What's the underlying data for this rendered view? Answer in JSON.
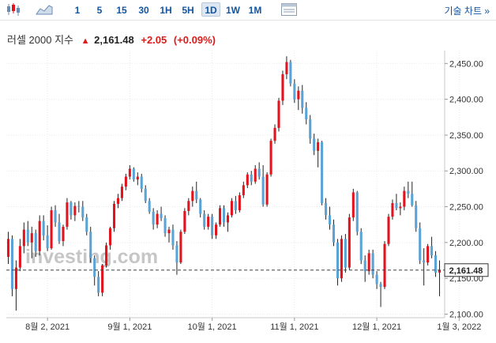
{
  "toolbar": {
    "timeframes": [
      "1",
      "5",
      "15",
      "30",
      "1H",
      "5H",
      "1D",
      "1W",
      "1M"
    ],
    "active_timeframe": "1D",
    "technical_chart_label": "기술 차트 »"
  },
  "quote": {
    "name": "러셀 2000 지수",
    "price": "2,161.48",
    "change": "+2.05",
    "change_pct": "(+0.09%)"
  },
  "watermark": "investing.com",
  "colors": {
    "up": "#e2131d",
    "down": "#5aa3d6",
    "accent": "#1256a0"
  },
  "chart_data": {
    "type": "candlestick",
    "y_ticks": [
      "2,450.00",
      "2,400.00",
      "2,350.00",
      "2,300.00",
      "2,250.00",
      "2,200.00",
      "2,150.00",
      "2,100.00"
    ],
    "x_ticks": [
      "8월 2, 2021",
      "9월 1, 2021",
      "10월 1, 2021",
      "11월 1, 2021",
      "12월 1, 2021",
      "1월 3, 2022"
    ],
    "ylim": [
      2095,
      2468
    ],
    "last_price_label": "2,161.48",
    "last_price": 2161.48,
    "candles": [
      [
        2180,
        2215,
        2170,
        2205
      ],
      [
        2205,
        2210,
        2125,
        2135
      ],
      [
        2135,
        2175,
        2105,
        2165
      ],
      [
        2165,
        2205,
        2160,
        2195
      ],
      [
        2195,
        2228,
        2185,
        2218
      ],
      [
        2218,
        2230,
        2195,
        2200
      ],
      [
        2200,
        2222,
        2178,
        2213
      ],
      [
        2213,
        2218,
        2180,
        2188
      ],
      [
        2188,
        2238,
        2182,
        2230
      ],
      [
        2230,
        2238,
        2203,
        2210
      ],
      [
        2210,
        2224,
        2188,
        2192
      ],
      [
        2192,
        2250,
        2190,
        2245
      ],
      [
        2245,
        2252,
        2222,
        2228
      ],
      [
        2228,
        2240,
        2198,
        2202
      ],
      [
        2202,
        2225,
        2195,
        2222
      ],
      [
        2222,
        2262,
        2218,
        2256
      ],
      [
        2256,
        2258,
        2232,
        2238
      ],
      [
        2238,
        2256,
        2230,
        2251
      ],
      [
        2251,
        2258,
        2242,
        2250
      ],
      [
        2250,
        2258,
        2230,
        2235
      ],
      [
        2235,
        2240,
        2210,
        2215
      ],
      [
        2215,
        2222,
        2172,
        2178
      ],
      [
        2178,
        2182,
        2140,
        2152
      ],
      [
        2152,
        2160,
        2125,
        2130
      ],
      [
        2130,
        2170,
        2125,
        2168
      ],
      [
        2168,
        2200,
        2165,
        2196
      ],
      [
        2196,
        2222,
        2190,
        2220
      ],
      [
        2220,
        2258,
        2215,
        2254
      ],
      [
        2254,
        2268,
        2248,
        2262
      ],
      [
        2262,
        2282,
        2258,
        2278
      ],
      [
        2278,
        2296,
        2273,
        2292
      ],
      [
        2292,
        2308,
        2288,
        2303
      ],
      [
        2303,
        2305,
        2285,
        2288
      ],
      [
        2288,
        2298,
        2280,
        2292
      ],
      [
        2292,
        2296,
        2270,
        2275
      ],
      [
        2275,
        2280,
        2255,
        2258
      ],
      [
        2258,
        2262,
        2240,
        2243
      ],
      [
        2243,
        2248,
        2218,
        2225
      ],
      [
        2225,
        2245,
        2220,
        2240
      ],
      [
        2240,
        2250,
        2230,
        2234
      ],
      [
        2234,
        2238,
        2208,
        2213
      ],
      [
        2213,
        2222,
        2200,
        2218
      ],
      [
        2218,
        2225,
        2190,
        2196
      ],
      [
        2196,
        2202,
        2155,
        2172
      ],
      [
        2172,
        2218,
        2170,
        2215
      ],
      [
        2215,
        2248,
        2212,
        2244
      ],
      [
        2244,
        2262,
        2238,
        2258
      ],
      [
        2258,
        2278,
        2250,
        2272
      ],
      [
        2272,
        2285,
        2255,
        2260
      ],
      [
        2260,
        2262,
        2235,
        2240
      ],
      [
        2240,
        2245,
        2218,
        2222
      ],
      [
        2222,
        2240,
        2218,
        2236
      ],
      [
        2236,
        2240,
        2205,
        2210
      ],
      [
        2210,
        2228,
        2205,
        2225
      ],
      [
        2225,
        2252,
        2222,
        2248
      ],
      [
        2248,
        2252,
        2222,
        2228
      ],
      [
        2228,
        2242,
        2215,
        2238
      ],
      [
        2238,
        2262,
        2235,
        2258
      ],
      [
        2258,
        2265,
        2240,
        2245
      ],
      [
        2245,
        2270,
        2242,
        2266
      ],
      [
        2266,
        2285,
        2262,
        2280
      ],
      [
        2280,
        2298,
        2276,
        2295
      ],
      [
        2295,
        2300,
        2280,
        2285
      ],
      [
        2285,
        2308,
        2282,
        2303
      ],
      [
        2303,
        2312,
        2288,
        2292
      ],
      [
        2292,
        2308,
        2250,
        2253
      ],
      [
        2253,
        2298,
        2250,
        2295
      ],
      [
        2295,
        2345,
        2292,
        2342
      ],
      [
        2342,
        2365,
        2338,
        2360
      ],
      [
        2360,
        2402,
        2355,
        2398
      ],
      [
        2398,
        2440,
        2392,
        2435
      ],
      [
        2435,
        2460,
        2428,
        2452
      ],
      [
        2452,
        2455,
        2418,
        2422
      ],
      [
        2422,
        2428,
        2395,
        2400
      ],
      [
        2400,
        2418,
        2385,
        2412
      ],
      [
        2412,
        2420,
        2380,
        2388
      ],
      [
        2388,
        2396,
        2365,
        2372
      ],
      [
        2372,
        2378,
        2338,
        2345
      ],
      [
        2345,
        2352,
        2322,
        2328
      ],
      [
        2328,
        2345,
        2305,
        2340
      ],
      [
        2340,
        2342,
        2252,
        2255
      ],
      [
        2255,
        2262,
        2232,
        2238
      ],
      [
        2238,
        2250,
        2218,
        2225
      ],
      [
        2225,
        2232,
        2195,
        2200
      ],
      [
        2200,
        2205,
        2140,
        2150
      ],
      [
        2150,
        2210,
        2145,
        2205
      ],
      [
        2205,
        2212,
        2158,
        2165
      ],
      [
        2165,
        2240,
        2162,
        2235
      ],
      [
        2235,
        2275,
        2230,
        2270
      ],
      [
        2270,
        2272,
        2210,
        2215
      ],
      [
        2215,
        2220,
        2170,
        2175
      ],
      [
        2175,
        2182,
        2145,
        2160
      ],
      [
        2160,
        2190,
        2155,
        2185
      ],
      [
        2185,
        2190,
        2150,
        2155
      ],
      [
        2155,
        2160,
        2135,
        2142
      ],
      [
        2142,
        2145,
        2110,
        2138
      ],
      [
        2138,
        2202,
        2135,
        2198
      ],
      [
        2198,
        2240,
        2195,
        2236
      ],
      [
        2236,
        2260,
        2232,
        2255
      ],
      [
        2255,
        2268,
        2245,
        2248
      ],
      [
        2248,
        2256,
        2238,
        2250
      ],
      [
        2250,
        2278,
        2245,
        2272
      ],
      [
        2272,
        2285,
        2262,
        2268
      ],
      [
        2268,
        2285,
        2250,
        2252
      ],
      [
        2252,
        2258,
        2215,
        2220
      ],
      [
        2220,
        2228,
        2170,
        2175
      ],
      [
        2175,
        2192,
        2140,
        2172
      ],
      [
        2172,
        2198,
        2168,
        2195
      ],
      [
        2195,
        2208,
        2178,
        2182
      ],
      [
        2182,
        2188,
        2152,
        2158
      ],
      [
        2158,
        2175,
        2125,
        2161.48
      ]
    ]
  }
}
